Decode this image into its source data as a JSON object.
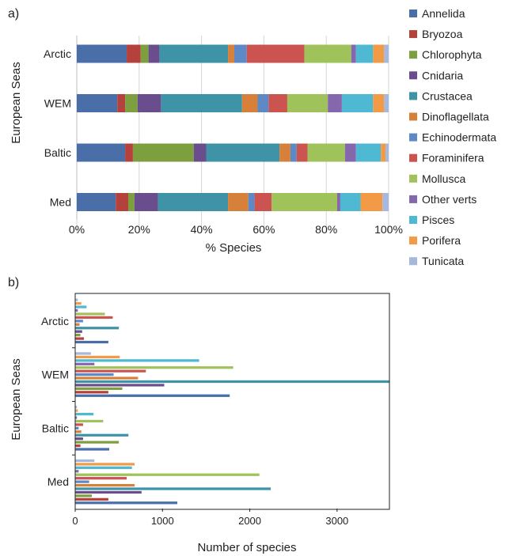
{
  "taxa": [
    {
      "name": "Annelida",
      "color": "#4a6fa8"
    },
    {
      "name": "Bryozoa",
      "color": "#b5413d"
    },
    {
      "name": "Chlorophyta",
      "color": "#7e9f3f"
    },
    {
      "name": "Cnidaria",
      "color": "#6a4d8c"
    },
    {
      "name": "Crustacea",
      "color": "#3e93a6"
    },
    {
      "name": "Dinoflagellata",
      "color": "#d6803a"
    },
    {
      "name": "Echinodermata",
      "color": "#5d89c6"
    },
    {
      "name": "Foraminifera",
      "color": "#cc5450"
    },
    {
      "name": "Mollusca",
      "color": "#9fc35a"
    },
    {
      "name": "Other verts",
      "color": "#8467ad"
    },
    {
      "name": "Pisces",
      "color": "#4fb8d2"
    },
    {
      "name": "Porifera",
      "color": "#f29a45"
    },
    {
      "name": "Tunicata",
      "color": "#a6b8dc"
    }
  ],
  "chart_data": [
    {
      "panel_label": "a)",
      "type": "bar",
      "orientation": "horizontal",
      "stacked": "percent",
      "categories": [
        "Arctic",
        "WEM",
        "Baltic",
        "Med"
      ],
      "ylabel": "European Seas",
      "xlabel": "% Species",
      "xticks": [
        "0%",
        "20%",
        "40%",
        "60%",
        "80%",
        "100%"
      ],
      "xlim": [
        0,
        100
      ],
      "legend_position": "right",
      "series": [
        {
          "name": "Annelida",
          "values": [
            16,
            13,
            15.5,
            12.5
          ]
        },
        {
          "name": "Bryozoa",
          "values": [
            4.5,
            2.5,
            2.5,
            4
          ]
        },
        {
          "name": "Chlorophyta",
          "values": [
            2.5,
            4,
            19.5,
            2
          ]
        },
        {
          "name": "Cnidaria",
          "values": [
            3.5,
            7.5,
            4,
            7.5
          ]
        },
        {
          "name": "Crustacea",
          "values": [
            22,
            26,
            23.5,
            22.5
          ]
        },
        {
          "name": "Dinoflagellata",
          "values": [
            2,
            5,
            3.5,
            6.5
          ]
        },
        {
          "name": "Echinodermata",
          "values": [
            4,
            3.5,
            2,
            2
          ]
        },
        {
          "name": "Foraminifera",
          "values": [
            18.5,
            6,
            3.5,
            5.5
          ]
        },
        {
          "name": "Mollusca",
          "values": [
            15,
            13,
            12,
            21
          ]
        },
        {
          "name": "Other verts",
          "values": [
            1.5,
            4.5,
            3.5,
            1
          ]
        },
        {
          "name": "Pisces",
          "values": [
            5.5,
            10,
            8,
            6.5
          ]
        },
        {
          "name": "Porifera",
          "values": [
            3.5,
            3.5,
            1.5,
            7
          ]
        },
        {
          "name": "Tunicata",
          "values": [
            1.5,
            1.5,
            1,
            2
          ]
        }
      ]
    },
    {
      "panel_label": "b)",
      "type": "bar",
      "orientation": "horizontal",
      "stacked": "none",
      "categories": [
        "Arctic",
        "WEM",
        "Baltic",
        "Med"
      ],
      "ylabel": "European Seas",
      "xlabel": "Number of species",
      "xticks": [
        "0",
        "1000",
        "2000",
        "3000"
      ],
      "xlim": [
        0,
        3600
      ],
      "series": [
        {
          "name": "Annelida",
          "values": [
            380,
            1770,
            390,
            1170
          ]
        },
        {
          "name": "Bryozoa",
          "values": [
            100,
            380,
            60,
            380
          ]
        },
        {
          "name": "Chlorophyta",
          "values": [
            60,
            540,
            500,
            190
          ]
        },
        {
          "name": "Cnidaria",
          "values": [
            80,
            1020,
            90,
            760
          ]
        },
        {
          "name": "Crustacea",
          "values": [
            500,
            3600,
            610,
            2240
          ]
        },
        {
          "name": "Dinoflagellata",
          "values": [
            50,
            720,
            70,
            680
          ]
        },
        {
          "name": "Echinodermata",
          "values": [
            90,
            440,
            40,
            160
          ]
        },
        {
          "name": "Foraminifera",
          "values": [
            430,
            810,
            90,
            590
          ]
        },
        {
          "name": "Mollusca",
          "values": [
            340,
            1810,
            320,
            2110
          ]
        },
        {
          "name": "Other verts",
          "values": [
            30,
            220,
            20,
            40
          ]
        },
        {
          "name": "Pisces",
          "values": [
            130,
            1420,
            210,
            650
          ]
        },
        {
          "name": "Porifera",
          "values": [
            70,
            510,
            30,
            680
          ]
        },
        {
          "name": "Tunicata",
          "values": [
            30,
            180,
            20,
            220
          ]
        }
      ]
    }
  ]
}
